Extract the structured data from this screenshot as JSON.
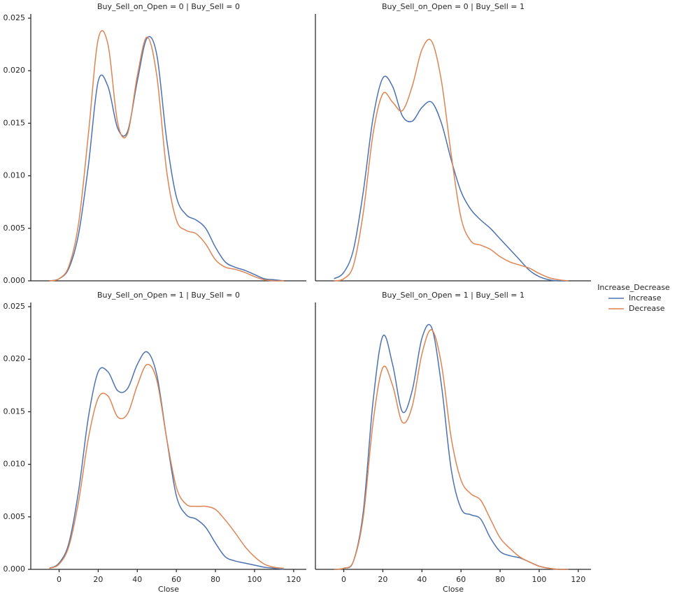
{
  "chart_data": [
    {
      "type": "line",
      "title": "Buy_Sell_on_Open = 0 | Buy_Sell = 0",
      "x": [
        -5,
        0,
        5,
        10,
        15,
        20,
        25,
        30,
        35,
        40,
        45,
        50,
        55,
        60,
        65,
        70,
        75,
        80,
        85,
        90,
        95,
        100,
        105,
        110,
        115
      ],
      "series": [
        {
          "name": "Increase",
          "color": "#4c72b0",
          "values": [
            0,
            0.0002,
            0.0012,
            0.0045,
            0.011,
            0.019,
            0.0185,
            0.0145,
            0.0142,
            0.019,
            0.0231,
            0.0215,
            0.0135,
            0.008,
            0.0063,
            0.0058,
            0.005,
            0.0032,
            0.0018,
            0.0013,
            0.001,
            0.0006,
            0.0002,
            0.0001,
            0
          ]
        },
        {
          "name": "Decrease",
          "color": "#dd8452",
          "values": [
            0,
            0.0002,
            0.0014,
            0.0055,
            0.014,
            0.023,
            0.0225,
            0.015,
            0.014,
            0.0195,
            0.0232,
            0.0195,
            0.0105,
            0.0058,
            0.0048,
            0.0045,
            0.0035,
            0.002,
            0.0013,
            0.0011,
            0.0008,
            0.0004,
            0.0001,
            0,
            0
          ]
        }
      ],
      "xlim": [
        -14.5,
        126.5
      ],
      "ylim": [
        0,
        0.0254
      ],
      "yticks": [
        {
          "value": 0,
          "label": "0.000"
        },
        0.005,
        {
          "value": 0.01,
          "label": "0.010"
        },
        0.015,
        {
          "value": 0.02,
          "label": "0.020"
        },
        0.025
      ]
    },
    {
      "type": "line",
      "title": "Buy_Sell_on_Open = 0 | Buy_Sell = 1",
      "x": [
        -5,
        0,
        5,
        10,
        15,
        20,
        25,
        30,
        35,
        40,
        45,
        50,
        55,
        60,
        65,
        70,
        75,
        80,
        85,
        90,
        95,
        100,
        105,
        110,
        115
      ],
      "series": [
        {
          "name": "Increase",
          "color": "#4c72b0",
          "values": [
            0.0002,
            0.0008,
            0.003,
            0.0085,
            0.0155,
            0.0193,
            0.0185,
            0.0157,
            0.0152,
            0.0165,
            0.017,
            0.015,
            0.0115,
            0.0085,
            0.0068,
            0.0058,
            0.005,
            0.004,
            0.003,
            0.002,
            0.001,
            0.0004,
            0.0001,
            0,
            0
          ]
        },
        {
          "name": "Decrease",
          "color": "#dd8452",
          "values": [
            0,
            0.0002,
            0.0015,
            0.0065,
            0.014,
            0.0178,
            0.017,
            0.0162,
            0.0185,
            0.022,
            0.0228,
            0.019,
            0.012,
            0.006,
            0.0038,
            0.0034,
            0.003,
            0.0023,
            0.0018,
            0.0015,
            0.0012,
            0.0007,
            0.0003,
            0.0001,
            0
          ]
        }
      ],
      "xlim": [
        -14.5,
        126.5
      ],
      "ylim": [
        0,
        0.0254
      ]
    },
    {
      "type": "line",
      "title": "Buy_Sell_on_Open = 1 | Buy_Sell = 0",
      "xlabel": "Close",
      "x": [
        -5,
        0,
        5,
        10,
        15,
        20,
        25,
        30,
        35,
        40,
        45,
        50,
        55,
        60,
        65,
        70,
        75,
        80,
        85,
        90,
        95,
        100,
        105,
        110,
        115
      ],
      "series": [
        {
          "name": "Increase",
          "color": "#4c72b0",
          "values": [
            0.0001,
            0.0006,
            0.0025,
            0.0075,
            0.0145,
            0.0188,
            0.0188,
            0.017,
            0.0172,
            0.0195,
            0.0207,
            0.0185,
            0.0125,
            0.007,
            0.0052,
            0.0048,
            0.004,
            0.0025,
            0.0012,
            0.0008,
            0.0006,
            0.0004,
            0.0002,
            0.0001,
            0
          ]
        },
        {
          "name": "Decrease",
          "color": "#dd8452",
          "values": [
            0.0001,
            0.0005,
            0.0022,
            0.0065,
            0.0125,
            0.0163,
            0.0165,
            0.0145,
            0.0148,
            0.0175,
            0.0195,
            0.018,
            0.0125,
            0.0078,
            0.0062,
            0.006,
            0.006,
            0.0057,
            0.0047,
            0.0035,
            0.0022,
            0.0012,
            0.0005,
            0.0002,
            0.0001
          ]
        }
      ],
      "xlim": [
        -14.5,
        126.5
      ],
      "ylim": [
        0,
        0.0254
      ],
      "xticks": [
        0,
        20,
        40,
        60,
        80,
        100,
        120
      ],
      "yticks": [
        {
          "value": 0,
          "label": "0.000"
        },
        0.005,
        {
          "value": 0.01,
          "label": "0.010"
        },
        0.015,
        {
          "value": 0.02,
          "label": "0.020"
        },
        0.025
      ]
    },
    {
      "type": "line",
      "title": "Buy_Sell_on_Open = 1 | Buy_Sell = 1",
      "xlabel": "Close",
      "x": [
        -5,
        0,
        5,
        10,
        15,
        20,
        25,
        30,
        35,
        40,
        45,
        50,
        55,
        60,
        65,
        70,
        75,
        80,
        85,
        90,
        95,
        100,
        105,
        110,
        115
      ],
      "series": [
        {
          "name": "Increase",
          "color": "#4c72b0",
          "values": [
            0,
            0.0001,
            0.0008,
            0.0055,
            0.016,
            0.0222,
            0.0195,
            0.015,
            0.017,
            0.022,
            0.023,
            0.0175,
            0.0095,
            0.0058,
            0.0052,
            0.0048,
            0.003,
            0.0017,
            0.0013,
            0.0011,
            0.0007,
            0.0003,
            0.0001,
            0,
            0
          ]
        },
        {
          "name": "Decrease",
          "color": "#dd8452",
          "values": [
            0,
            0.0001,
            0.0008,
            0.005,
            0.014,
            0.0192,
            0.0175,
            0.014,
            0.0155,
            0.0205,
            0.0228,
            0.0195,
            0.0125,
            0.0085,
            0.0072,
            0.0066,
            0.0048,
            0.003,
            0.002,
            0.0012,
            0.0007,
            0.0003,
            0.0001,
            0,
            0
          ]
        }
      ],
      "xlim": [
        -14.5,
        126.5
      ],
      "ylim": [
        0,
        0.0254
      ],
      "xticks": [
        0,
        20,
        40,
        60,
        80,
        100,
        120
      ]
    }
  ],
  "legend": {
    "title": "Increase_Decrease",
    "position": "right"
  }
}
